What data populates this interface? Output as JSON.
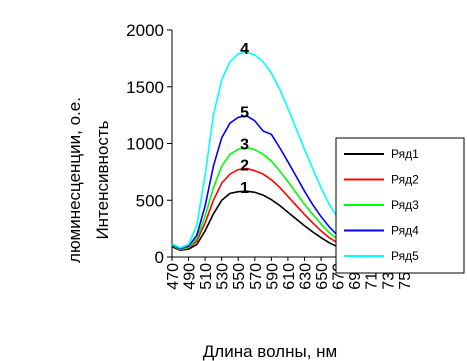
{
  "chart_data": {
    "type": "line",
    "xlabel": "Длина волны, нм",
    "ylabel_line1": "Интенсивность",
    "ylabel_line2": "люминесценции, о.е.",
    "ylim": [
      0,
      2000
    ],
    "yticks": [
      0,
      500,
      1000,
      1500,
      2000
    ],
    "xlim": [
      470,
      755
    ],
    "xticks": [
      470,
      490,
      510,
      530,
      550,
      570,
      590,
      610,
      630,
      650,
      670,
      690,
      710,
      730,
      750
    ],
    "grid": false,
    "legend_position": "right",
    "series": [
      {
        "name": "Ряд1",
        "label": "1",
        "color": "#000000",
        "x": [
          470,
          480,
          490,
          500,
          510,
          520,
          530,
          540,
          550,
          560,
          570,
          580,
          590,
          600,
          610,
          620,
          630,
          640,
          650,
          660,
          670,
          680,
          690,
          700,
          710,
          720,
          730,
          740,
          750,
          755
        ],
        "y": [
          90,
          60,
          70,
          110,
          230,
          380,
          500,
          560,
          575,
          580,
          570,
          545,
          505,
          455,
          395,
          335,
          275,
          220,
          170,
          125,
          90,
          65,
          48,
          38,
          30,
          25,
          20,
          15,
          10,
          8
        ]
      },
      {
        "name": "Ряд2",
        "label": "2",
        "color": "#ff0000",
        "x": [
          470,
          480,
          490,
          500,
          510,
          520,
          530,
          540,
          550,
          560,
          570,
          580,
          590,
          600,
          610,
          620,
          630,
          640,
          650,
          660,
          670,
          680,
          690,
          700,
          710,
          720,
          730,
          740,
          750,
          755
        ],
        "y": [
          100,
          65,
          80,
          140,
          300,
          500,
          650,
          730,
          770,
          780,
          760,
          730,
          680,
          615,
          535,
          455,
          375,
          300,
          230,
          170,
          125,
          90,
          65,
          50,
          40,
          32,
          25,
          18,
          12,
          10
        ]
      },
      {
        "name": "Ряд3",
        "label": "3",
        "color": "#00ff00",
        "x": [
          470,
          480,
          490,
          500,
          510,
          520,
          530,
          540,
          550,
          560,
          570,
          580,
          590,
          600,
          610,
          620,
          630,
          640,
          650,
          660,
          670,
          680,
          690,
          700,
          710,
          720,
          730,
          740,
          750,
          755
        ],
        "y": [
          105,
          70,
          85,
          160,
          360,
          610,
          800,
          905,
          950,
          965,
          945,
          905,
          845,
          760,
          665,
          565,
          465,
          375,
          290,
          215,
          155,
          110,
          80,
          60,
          45,
          35,
          28,
          20,
          14,
          12
        ]
      },
      {
        "name": "Ряд4",
        "label": "5",
        "color": "#0000ff",
        "x": [
          470,
          480,
          490,
          500,
          510,
          520,
          530,
          540,
          550,
          560,
          570,
          580,
          590,
          600,
          610,
          620,
          630,
          640,
          650,
          660,
          670,
          680,
          690,
          700,
          710,
          720,
          730,
          740,
          750,
          755
        ],
        "y": [
          110,
          75,
          95,
          190,
          450,
          800,
          1050,
          1180,
          1230,
          1245,
          1200,
          1110,
          1080,
          965,
          840,
          710,
          580,
          460,
          355,
          265,
          190,
          135,
          100,
          75,
          58,
          45,
          35,
          25,
          18,
          15
        ]
      },
      {
        "name": "Ряд5",
        "label": "4",
        "color": "#00ffff",
        "x": [
          470,
          480,
          490,
          500,
          510,
          520,
          530,
          540,
          550,
          560,
          570,
          580,
          590,
          600,
          610,
          620,
          630,
          640,
          650,
          660,
          670,
          680,
          690,
          700,
          710,
          720,
          730,
          740,
          750,
          755
        ],
        "y": [
          115,
          80,
          110,
          280,
          720,
          1250,
          1560,
          1720,
          1790,
          1805,
          1780,
          1720,
          1620,
          1480,
          1310,
          1130,
          950,
          775,
          610,
          465,
          345,
          250,
          180,
          130,
          95,
          70,
          50,
          35,
          25,
          20
        ]
      }
    ]
  }
}
